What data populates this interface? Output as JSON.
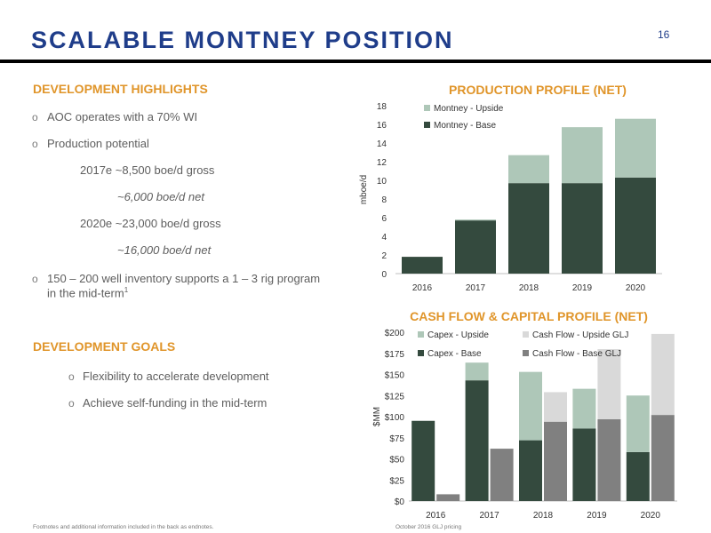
{
  "header": {
    "title": "SCALABLE MONTNEY POSITION",
    "page_number": "16"
  },
  "highlights": {
    "heading": "DEVELOPMENT HIGHLIGHTS",
    "wi": "AOC operates with a 70% WI",
    "prod_potential": "Production potential",
    "y2017_gross": "2017e  ~8,500 boe/d gross",
    "y2017_net": "~6,000 boe/d net",
    "y2020_gross": "2020e  ~23,000 boe/d gross",
    "y2020_net": "~16,000 boe/d net",
    "inventory_line1": "150 – 200  well inventory supports a 1 – 3 rig program",
    "inventory_line2": "in the mid-term",
    "inventory_sup": "1"
  },
  "goals": {
    "heading": "DEVELOPMENT GOALS",
    "items": [
      "Flexibility to accelerate development",
      "Achieve self-funding in the mid-term"
    ]
  },
  "footnote": "Footnotes and additional information included in the back as endnotes.",
  "pricing_note": "October 2016 GLJ pricing",
  "colors": {
    "base": "#344a3e",
    "upside": "#aec7b8",
    "cf_base": "#808080",
    "cf_upside": "#d9d9d9",
    "title_blue": "#1f3d8a",
    "accent_orange": "#e0952a"
  },
  "chart_data": [
    {
      "type": "bar",
      "title": "PRODUCTION PROFILE (NET)",
      "ylabel": "mboe/d",
      "categories": [
        "2016",
        "2017",
        "2018",
        "2019",
        "2020"
      ],
      "ylim": [
        0,
        18
      ],
      "yticks": [
        "0",
        "2",
        "4",
        "6",
        "8",
        "10",
        "12",
        "14",
        "16",
        "18"
      ],
      "stacked": true,
      "series": [
        {
          "name": "Montney - Base",
          "values": [
            1.8,
            5.7,
            9.7,
            9.7,
            10.3
          ]
        },
        {
          "name": "Montney - Upside",
          "values": [
            0,
            0.1,
            3.0,
            6.0,
            6.3
          ]
        }
      ],
      "legend": "top-left"
    },
    {
      "type": "bar",
      "title": "CASH FLOW & CAPITAL PROFILE (NET)",
      "ylabel": "$MM",
      "categories": [
        "2016",
        "2017",
        "2018",
        "2019",
        "2020"
      ],
      "ylim": [
        0,
        200
      ],
      "yticks": [
        "$0",
        "$25",
        "$50",
        "$75",
        "$100",
        "$125",
        "$150",
        "$175",
        "$200"
      ],
      "stacked": true,
      "series": [
        {
          "name": "Capex - Base",
          "group": "capex",
          "values": [
            95,
            143,
            72,
            86,
            58
          ]
        },
        {
          "name": "Capex - Upside",
          "group": "capex",
          "values": [
            0,
            21,
            81,
            47,
            67
          ]
        },
        {
          "name": "Cash Flow - Base GLJ",
          "group": "cf",
          "values": [
            8,
            62,
            94,
            97,
            102
          ]
        },
        {
          "name": "Cash Flow - Upside GLJ",
          "group": "cf",
          "values": [
            0,
            0,
            35,
            83,
            96
          ]
        }
      ],
      "legend": "top"
    }
  ]
}
